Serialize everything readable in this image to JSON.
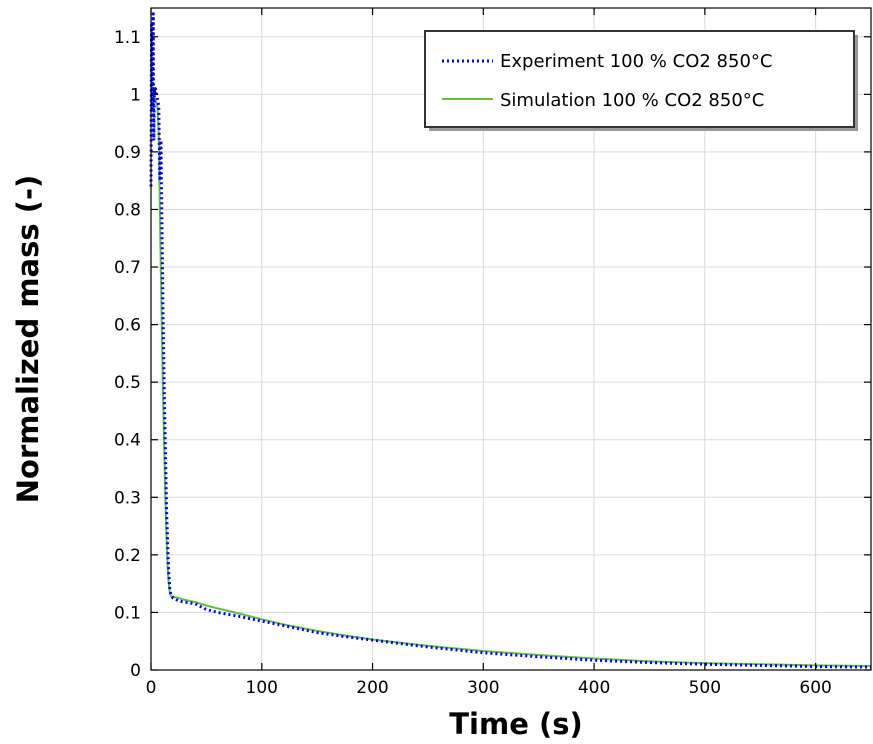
{
  "chart_data": {
    "type": "line",
    "title": "",
    "xlabel": "Time (s)",
    "ylabel": "Normalized mass (-)",
    "xlim": [
      0,
      650
    ],
    "ylim": [
      0,
      1.15
    ],
    "x_ticks": [
      "0",
      "100",
      "200",
      "300",
      "400",
      "500",
      "600"
    ],
    "y_ticks": [
      "0",
      "0.1",
      "0.2",
      "0.3",
      "0.4",
      "0.5",
      "0.6",
      "0.7",
      "0.8",
      "0.9",
      "1",
      "1.1"
    ],
    "grid": true,
    "legend_position": "top-right",
    "series": [
      {
        "name": "Experiment 100 % CO2 850°C",
        "color": "#0000ee",
        "style": "dotted",
        "x": [
          0,
          0.5,
          1,
          1.5,
          2,
          2.5,
          3,
          3.5,
          4,
          5,
          6,
          7,
          8,
          9,
          10,
          11,
          12,
          13,
          14,
          15,
          16,
          17,
          18,
          20,
          25,
          30,
          40,
          50,
          60,
          80,
          100,
          125,
          150,
          175,
          200,
          250,
          300,
          350,
          400,
          450,
          500,
          550,
          600,
          650
        ],
        "y": [
          0.84,
          1.12,
          0.97,
          1.02,
          1.14,
          0.92,
          1.01,
          1.0,
          1.01,
          1.0,
          0.99,
          0.98,
          0.85,
          0.92,
          0.75,
          0.6,
          0.48,
          0.38,
          0.28,
          0.22,
          0.17,
          0.14,
          0.13,
          0.125,
          0.12,
          0.118,
          0.115,
          0.105,
          0.1,
          0.093,
          0.085,
          0.075,
          0.065,
          0.058,
          0.052,
          0.04,
          0.03,
          0.023,
          0.017,
          0.013,
          0.01,
          0.008,
          0.006,
          0.005
        ]
      },
      {
        "name": "Simulation 100 % CO2 850°C",
        "color": "#66bb44",
        "style": "solid",
        "x": [
          0,
          1,
          2,
          3,
          4,
          5,
          6,
          7,
          8,
          9,
          10,
          11,
          12,
          13,
          14,
          15,
          16,
          17,
          18,
          20,
          25,
          30,
          40,
          50,
          60,
          80,
          100,
          125,
          150,
          175,
          200,
          250,
          300,
          350,
          400,
          450,
          500,
          550,
          600,
          650
        ],
        "y": [
          0.995,
          1.0,
          1.0,
          0.995,
          0.99,
          0.985,
          0.975,
          0.93,
          0.8,
          0.68,
          0.57,
          0.47,
          0.38,
          0.3,
          0.23,
          0.18,
          0.15,
          0.135,
          0.128,
          0.127,
          0.125,
          0.122,
          0.118,
          0.112,
          0.107,
          0.098,
          0.088,
          0.077,
          0.068,
          0.06,
          0.053,
          0.042,
          0.033,
          0.026,
          0.02,
          0.015,
          0.012,
          0.01,
          0.008,
          0.007
        ]
      }
    ]
  }
}
